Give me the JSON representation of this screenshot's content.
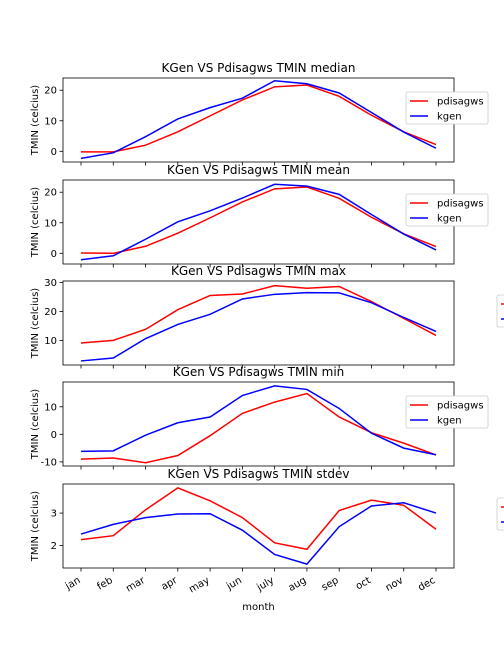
{
  "chart_data": [
    {
      "type": "line",
      "title": "KGen VS Pdisagws TMIN median",
      "ylabel": "TMIN (celcius)",
      "xlabel": "",
      "categories": [
        "jan",
        "feb",
        "mar",
        "apr",
        "may",
        "jun",
        "july",
        "aug",
        "sep",
        "oct",
        "nov",
        "dec"
      ],
      "ylim": [
        -3.5,
        24
      ],
      "yticks": [
        0,
        10,
        20
      ],
      "legend": "right",
      "series": [
        {
          "name": "pdisagws",
          "color": "#ff0000",
          "values": [
            -0.2,
            -0.2,
            2.0,
            6.4,
            11.6,
            16.8,
            21.1,
            21.7,
            18.0,
            11.8,
            6.4,
            2.2
          ]
        },
        {
          "name": "kgen",
          "color": "#0000ff",
          "values": [
            -2.3,
            -0.5,
            4.8,
            10.6,
            14.3,
            17.4,
            23.1,
            22.1,
            19.1,
            12.7,
            6.3,
            1.0
          ]
        }
      ]
    },
    {
      "type": "line",
      "title": "KGen VS Pdisagws TMIN mean",
      "ylabel": "TMIN (celcius)",
      "xlabel": "",
      "categories": [
        "jan",
        "feb",
        "mar",
        "apr",
        "may",
        "jun",
        "july",
        "aug",
        "sep",
        "oct",
        "nov",
        "dec"
      ],
      "ylim": [
        -3.5,
        24
      ],
      "yticks": [
        0,
        10,
        20
      ],
      "legend": "right",
      "series": [
        {
          "name": "pdisagws",
          "color": "#ff0000",
          "values": [
            0.1,
            0.0,
            2.3,
            6.6,
            11.6,
            16.8,
            21.1,
            21.7,
            18.0,
            11.8,
            6.4,
            2.2
          ]
        },
        {
          "name": "kgen",
          "color": "#0000ff",
          "values": [
            -2.1,
            -0.8,
            4.6,
            10.3,
            13.9,
            18.1,
            22.6,
            22.0,
            19.3,
            12.7,
            6.3,
            1.1
          ]
        }
      ]
    },
    {
      "type": "line",
      "title": "KGen VS Pdisagws TMIN max",
      "ylabel": "TMIN (celcius)",
      "xlabel": "",
      "categories": [
        "jan",
        "feb",
        "mar",
        "apr",
        "may",
        "jun",
        "july",
        "aug",
        "sep",
        "oct",
        "nov",
        "dec"
      ],
      "ylim": [
        1.5,
        30.5
      ],
      "yticks": [
        10,
        20,
        30
      ],
      "legend": "right-outside",
      "series": [
        {
          "name": "pdisagws",
          "color": "#ff0000",
          "values": [
            9.1,
            10.0,
            13.8,
            20.6,
            25.5,
            26.0,
            28.9,
            28.0,
            28.6,
            23.4,
            17.6,
            11.7
          ]
        },
        {
          "name": "kgen",
          "color": "#0000ff",
          "values": [
            2.9,
            3.9,
            10.6,
            15.5,
            19.0,
            24.3,
            25.9,
            26.5,
            26.4,
            23.0,
            17.9,
            13.1
          ]
        }
      ]
    },
    {
      "type": "line",
      "title": "KGen VS Pdisagws TMIN min",
      "ylabel": "TMIN (celcius)",
      "xlabel": "",
      "categories": [
        "jan",
        "feb",
        "mar",
        "apr",
        "may",
        "jun",
        "july",
        "aug",
        "sep",
        "oct",
        "nov",
        "dec"
      ],
      "ylim": [
        -11.5,
        19
      ],
      "yticks": [
        -10,
        0,
        10
      ],
      "legend": "right",
      "series": [
        {
          "name": "pdisagws",
          "color": "#ff0000",
          "values": [
            -9.0,
            -8.6,
            -10.3,
            -7.7,
            -0.5,
            7.6,
            11.7,
            14.8,
            6.3,
            0.6,
            -3.2,
            -7.5
          ]
        },
        {
          "name": "kgen",
          "color": "#0000ff",
          "values": [
            -6.2,
            -6.0,
            -0.3,
            4.2,
            6.3,
            14.1,
            17.6,
            16.3,
            9.4,
            0.4,
            -5.0,
            -7.4
          ]
        }
      ]
    },
    {
      "type": "line",
      "title": "KGen VS Pdisagws TMIN stdev",
      "ylabel": "TMIN (celcius)",
      "xlabel": "month",
      "categories": [
        "jan",
        "feb",
        "mar",
        "apr",
        "may",
        "jun",
        "july",
        "aug",
        "sep",
        "oct",
        "nov",
        "dec"
      ],
      "ylim": [
        1.3,
        3.9
      ],
      "yticks": [
        2,
        3
      ],
      "legend": "right-outside",
      "series": [
        {
          "name": "pdisagws",
          "color": "#ff0000",
          "values": [
            2.18,
            2.3,
            3.1,
            3.78,
            3.38,
            2.86,
            2.08,
            1.88,
            3.08,
            3.4,
            3.24,
            2.5
          ]
        },
        {
          "name": "kgen",
          "color": "#0000ff",
          "values": [
            2.35,
            2.65,
            2.86,
            2.97,
            2.98,
            2.47,
            1.72,
            1.42,
            2.58,
            3.22,
            3.32,
            3.0
          ]
        }
      ]
    }
  ]
}
